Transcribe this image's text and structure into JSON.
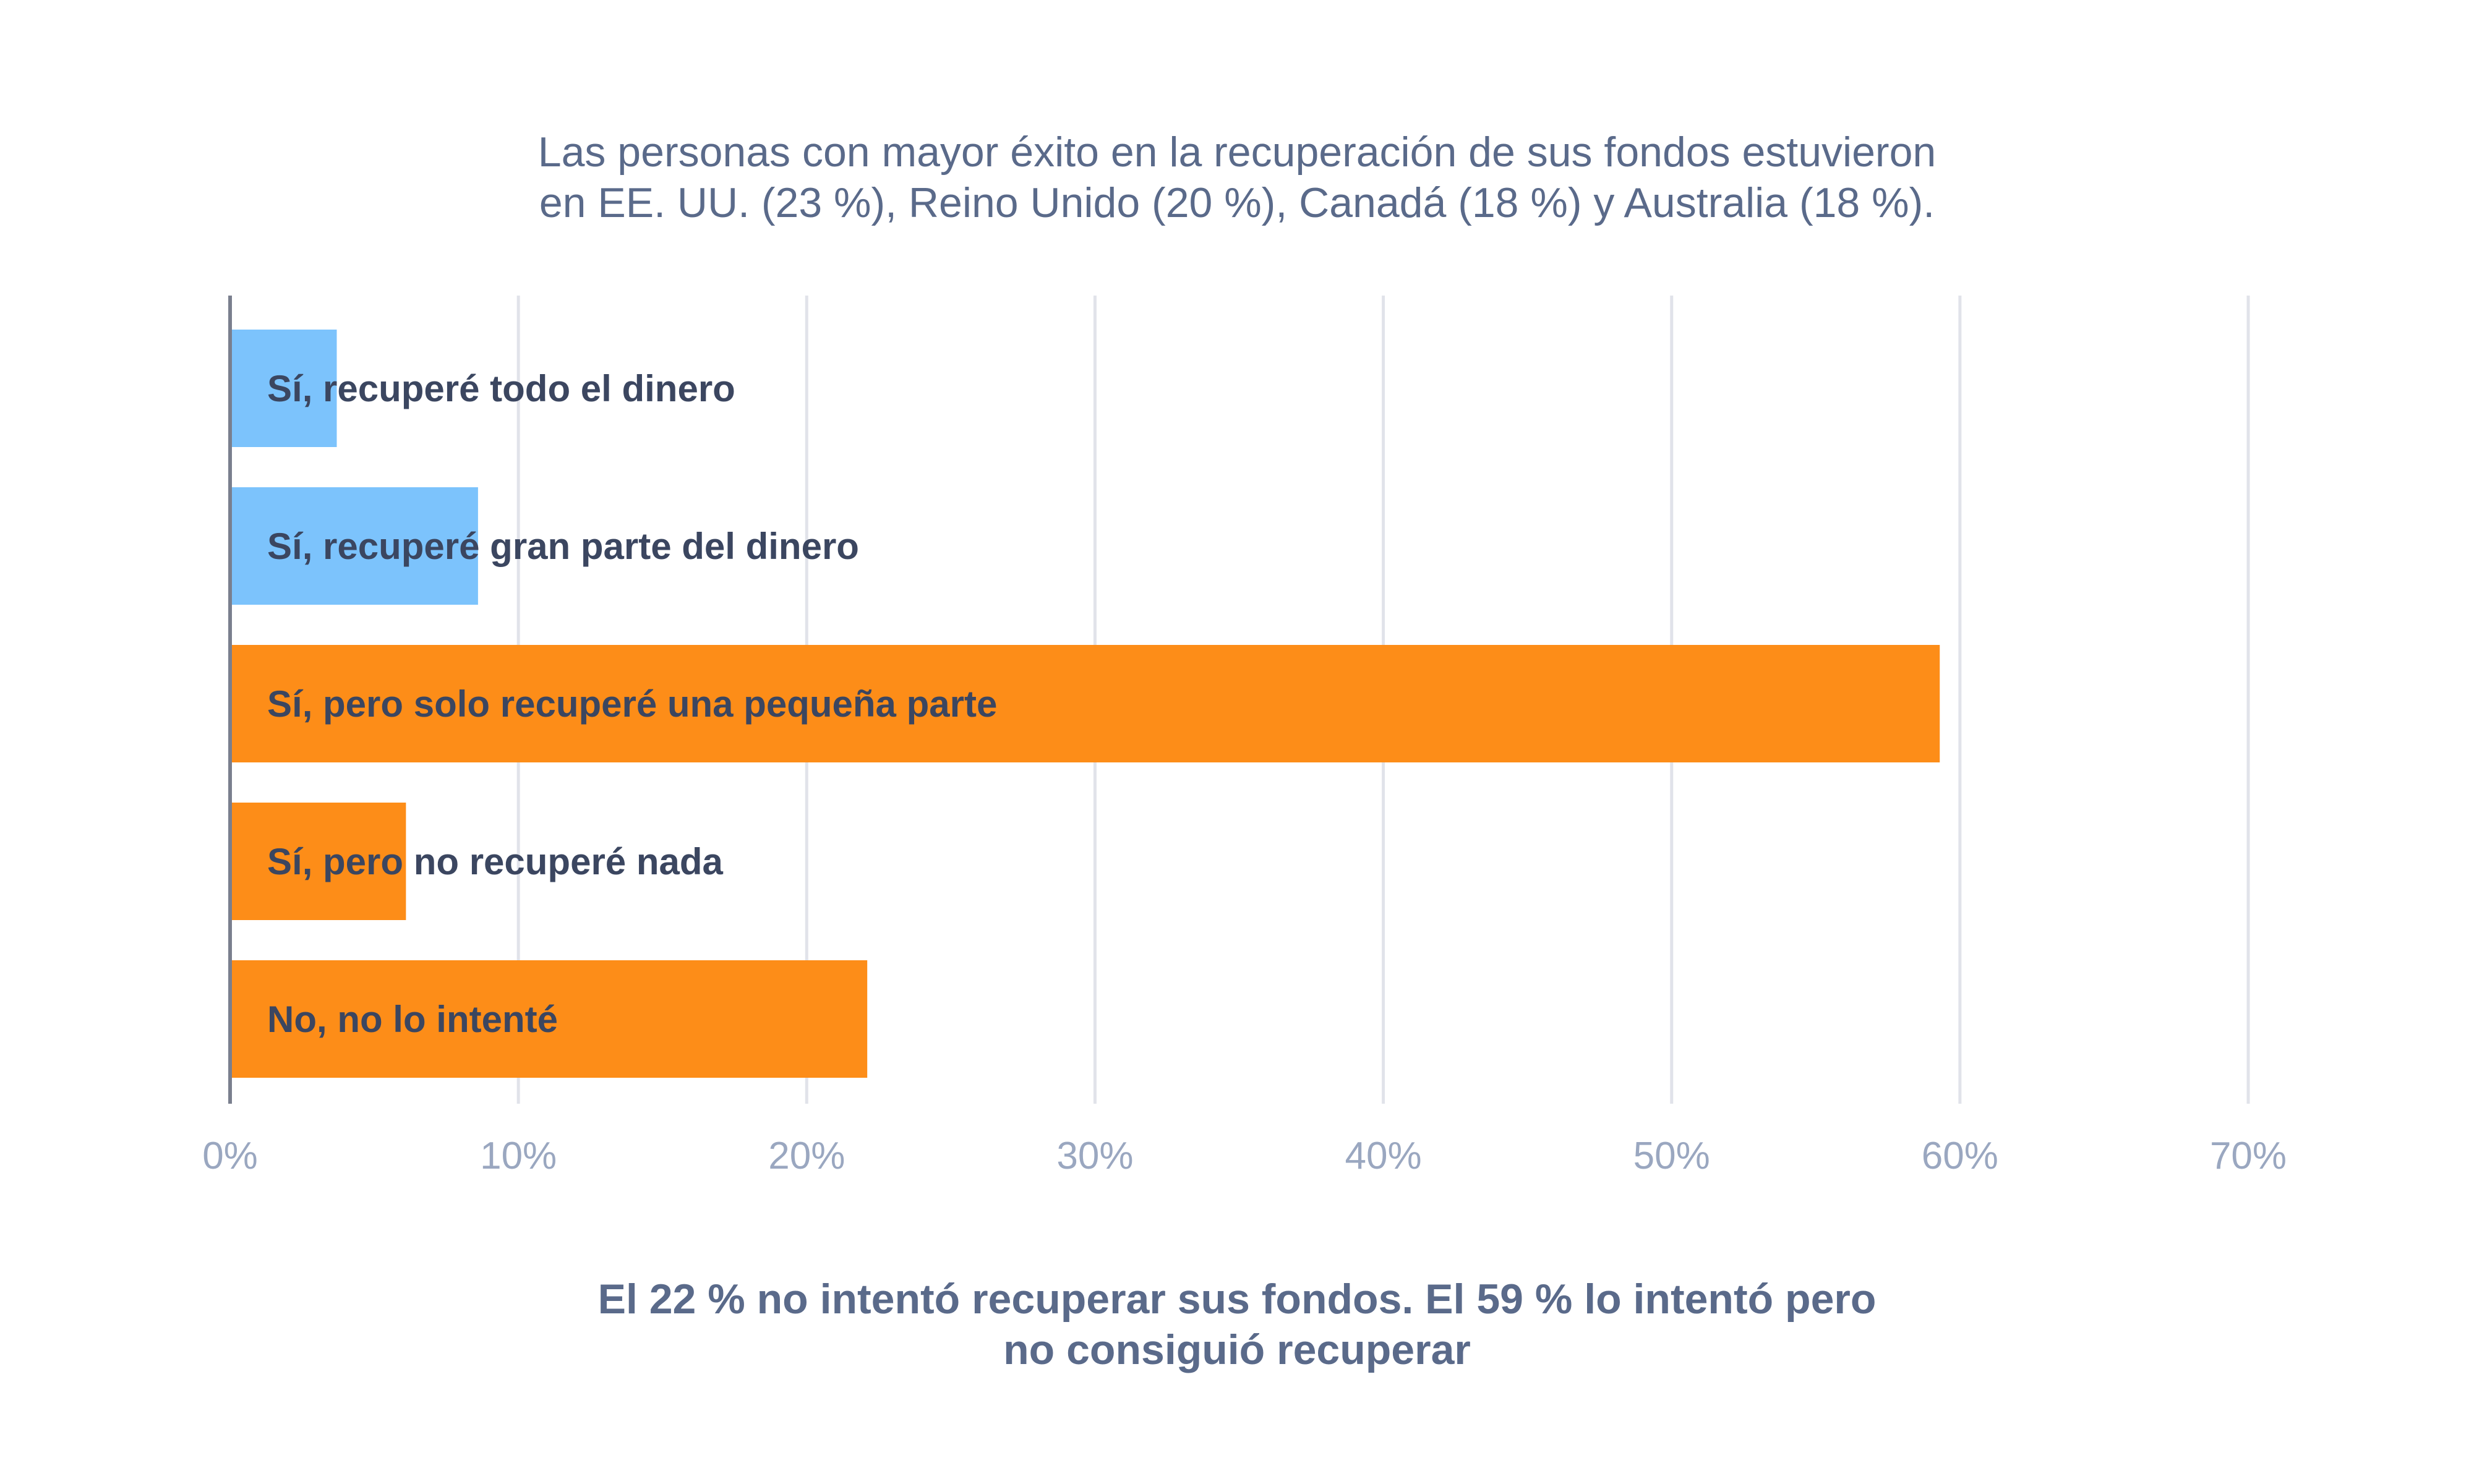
{
  "chart_data": {
    "type": "bar",
    "orientation": "horizontal",
    "title_lines": [
      "Las personas con mayor éxito en la recuperación de sus fondos estuvieron",
      "en EE. UU. (23 %), Reino Unido (20 %), Canadá (18 %) y Australia (18 %)."
    ],
    "categories": [
      "Sí, recuperé todo el dinero",
      "Sí, recuperé gran parte del dinero",
      "Sí, pero solo recuperé una pequeña parte",
      "Sí, pero no recuperé nada",
      "No, no lo intenté"
    ],
    "values": [
      3.7,
      8.6,
      59.3,
      6.1,
      22.1
    ],
    "bar_colors": [
      "#7cc3fc",
      "#7cc3fc",
      "#fd8d18",
      "#fd8d18",
      "#fd8d18"
    ],
    "xlim": [
      0,
      70
    ],
    "xticks": [
      0,
      10,
      20,
      30,
      40,
      50,
      60,
      70
    ],
    "xtick_labels": [
      "0%",
      "10%",
      "20%",
      "30%",
      "40%",
      "50%",
      "60%",
      "70%"
    ],
    "grid": true,
    "footer_lines": [
      "El 22 % no intentó recuperar sus fondos. El 59 % lo intentó pero",
      "no consiguió recuperar"
    ]
  }
}
